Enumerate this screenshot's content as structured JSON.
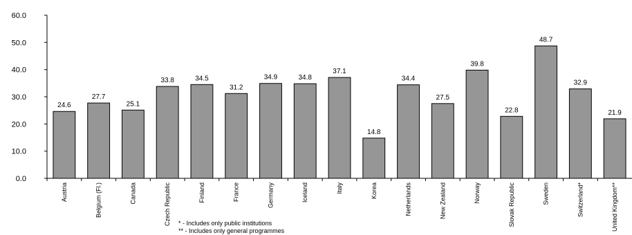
{
  "chart_data": {
    "type": "bar",
    "categories": [
      "Austria",
      "Belgium (Fl.)",
      "Canada",
      "Czech Republic",
      "Finland",
      "France",
      "Germany",
      "Iceland",
      "Italy",
      "Korea",
      "Netherlands",
      "New Zealand",
      "Norway",
      "Slovak Republic",
      "Sweden",
      "Switzerland*",
      "United Kingdom**"
    ],
    "values": [
      24.6,
      27.7,
      25.1,
      33.8,
      34.5,
      31.2,
      34.9,
      34.8,
      37.1,
      14.8,
      34.4,
      27.5,
      39.8,
      22.8,
      48.7,
      32.9,
      21.9
    ],
    "color": "#969696",
    "ylim": [
      0,
      60
    ],
    "yticks": [
      {
        "value": 0,
        "label": "0.0"
      },
      {
        "value": 10,
        "label": "10.0"
      },
      {
        "value": 20,
        "label": "20.0"
      },
      {
        "value": 30,
        "label": "30.0"
      },
      {
        "value": 40,
        "label": "40.0"
      },
      {
        "value": 50,
        "label": "50.0"
      },
      {
        "value": 60,
        "label": "60.0"
      }
    ],
    "grid": false,
    "notes": [
      "* - Includes only public institutions",
      "** - Includes only general programmes"
    ]
  }
}
